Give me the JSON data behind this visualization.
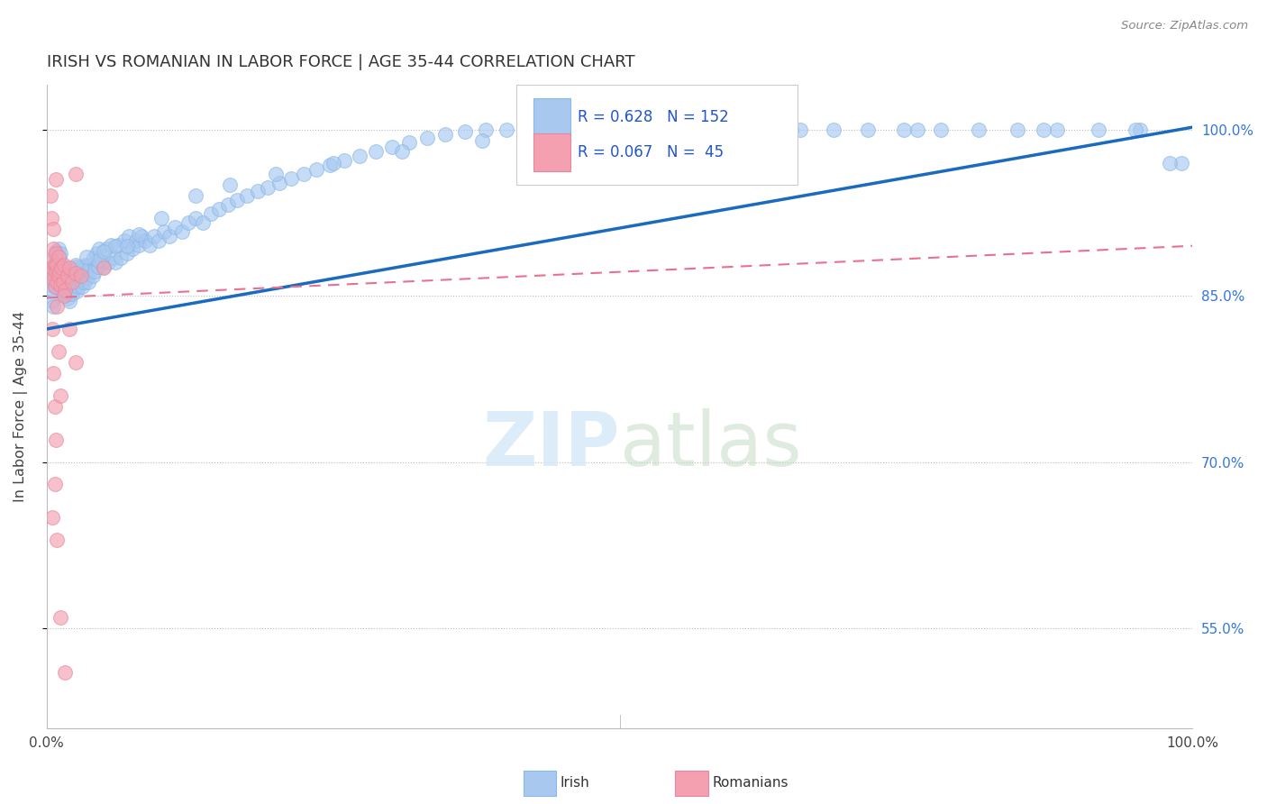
{
  "title": "IRISH VS ROMANIAN IN LABOR FORCE | AGE 35-44 CORRELATION CHART",
  "source": "Source: ZipAtlas.com",
  "ylabel": "In Labor Force | Age 35-44",
  "xlim": [
    0.0,
    1.0
  ],
  "ylim": [
    0.46,
    1.04
  ],
  "ytick_labels_right": [
    "55.0%",
    "70.0%",
    "85.0%",
    "100.0%"
  ],
  "ytick_vals_right": [
    0.55,
    0.7,
    0.85,
    1.0
  ],
  "irish_R": 0.628,
  "irish_N": 152,
  "romanian_R": 0.067,
  "romanian_N": 45,
  "irish_color": "#a8c8f0",
  "romanian_color": "#f4a0b0",
  "irish_line_color": "#1a6bbf",
  "romanian_line_color": "#e87090",
  "background_color": "#ffffff",
  "grid_color": "#cccccc",
  "irish_line_start_y": 0.82,
  "irish_line_end_y": 1.002,
  "romanian_line_start_y": 0.848,
  "romanian_line_end_y": 0.895
}
